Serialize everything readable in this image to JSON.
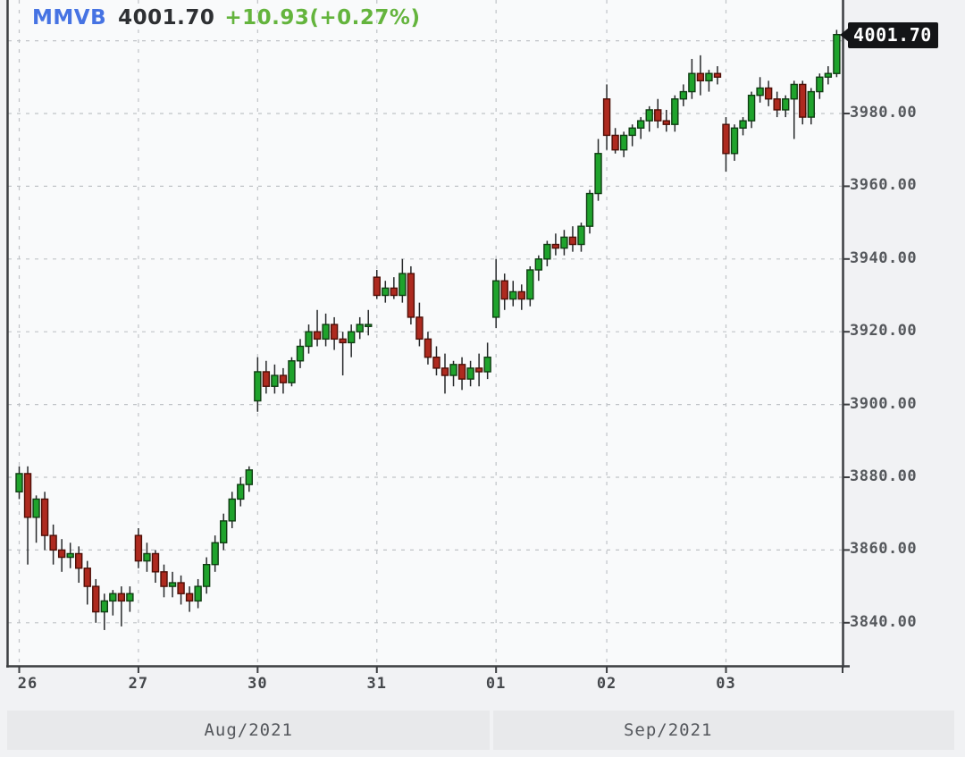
{
  "header": {
    "symbol": "MMVB",
    "last": "4001.70",
    "change": "+10.93(+0.27%)"
  },
  "price_tag": {
    "value": "4001.70"
  },
  "chart_data": {
    "type": "candlestick",
    "title": "MMVB intraday (hourly) candlestick chart",
    "symbol": "MMVB",
    "last_price": 4001.7,
    "change": "+10.93",
    "change_percent": "+0.27%",
    "legend_position": "top-left",
    "grid": true,
    "y_axis": {
      "side": "right",
      "visible_range": [
        3828,
        4012
      ],
      "grid_step": 20,
      "grid_levels": [
        3840,
        3860,
        3880,
        3900,
        3920,
        3940,
        3960,
        3980,
        4000
      ],
      "label_levels": [
        3980,
        3960,
        3940,
        3920,
        3900,
        3880,
        3860,
        3840
      ],
      "labels": [
        "3980.00",
        "3960.00",
        "3940.00",
        "3920.00",
        "3900.00",
        "3880.00",
        "3860.00",
        "3840.00"
      ]
    },
    "x_axis": {
      "day_ticks": [
        {
          "index": 0,
          "label": "26"
        },
        {
          "index": 14,
          "label": "27"
        },
        {
          "index": 28,
          "label": "30"
        },
        {
          "index": 42,
          "label": "31"
        },
        {
          "index": 56,
          "label": "01"
        },
        {
          "index": 69,
          "label": "02"
        },
        {
          "index": 83,
          "label": "03"
        }
      ],
      "months": [
        {
          "label": "Aug/2021",
          "start_index": 0
        },
        {
          "label": "Sep/2021",
          "start_index": 56
        }
      ]
    },
    "candles": [
      [
        3876,
        3883,
        3874,
        3881
      ],
      [
        3881,
        3883,
        3856,
        3869
      ],
      [
        3869,
        3875,
        3862,
        3874
      ],
      [
        3874,
        3876,
        3860,
        3864
      ],
      [
        3864,
        3867,
        3856,
        3860
      ],
      [
        3860,
        3863,
        3854,
        3858
      ],
      [
        3858,
        3862,
        3855,
        3859
      ],
      [
        3859,
        3861,
        3851,
        3855
      ],
      [
        3855,
        3857,
        3845,
        3850
      ],
      [
        3850,
        3852,
        3840,
        3843
      ],
      [
        3843,
        3848,
        3838,
        3846
      ],
      [
        3846,
        3849,
        3842,
        3848
      ],
      [
        3848,
        3850,
        3839,
        3846
      ],
      [
        3846,
        3850,
        3843,
        3848
      ],
      [
        3864,
        3866,
        3855,
        3857
      ],
      [
        3857,
        3862,
        3854,
        3859
      ],
      [
        3859,
        3860,
        3851,
        3854
      ],
      [
        3854,
        3856,
        3847,
        3850
      ],
      [
        3850,
        3854,
        3847,
        3851
      ],
      [
        3851,
        3853,
        3845,
        3848
      ],
      [
        3848,
        3850,
        3843,
        3846
      ],
      [
        3846,
        3852,
        3844,
        3850
      ],
      [
        3850,
        3858,
        3848,
        3856
      ],
      [
        3856,
        3864,
        3854,
        3862
      ],
      [
        3862,
        3870,
        3860,
        3868
      ],
      [
        3868,
        3876,
        3866,
        3874
      ],
      [
        3874,
        3880,
        3872,
        3878
      ],
      [
        3878,
        3883,
        3876,
        3882
      ],
      [
        3901,
        3913,
        3898,
        3909
      ],
      [
        3909,
        3912,
        3903,
        3905
      ],
      [
        3905,
        3911,
        3903,
        3908
      ],
      [
        3908,
        3910,
        3903,
        3906
      ],
      [
        3906,
        3913,
        3905,
        3912
      ],
      [
        3912,
        3918,
        3910,
        3916
      ],
      [
        3916,
        3922,
        3914,
        3920
      ],
      [
        3920,
        3926,
        3916,
        3918
      ],
      [
        3918,
        3925,
        3916,
        3922
      ],
      [
        3922,
        3924,
        3915,
        3918
      ],
      [
        3918,
        3920,
        3908,
        3917
      ],
      [
        3917,
        3922,
        3913,
        3920
      ],
      [
        3920,
        3924,
        3918,
        3922
      ],
      [
        3922,
        3926,
        3919,
        3922
      ],
      [
        3935,
        3937,
        3929,
        3930
      ],
      [
        3930,
        3934,
        3928,
        3932
      ],
      [
        3932,
        3935,
        3929,
        3930
      ],
      [
        3930,
        3940,
        3928,
        3936
      ],
      [
        3936,
        3938,
        3922,
        3924
      ],
      [
        3924,
        3928,
        3916,
        3918
      ],
      [
        3918,
        3920,
        3911,
        3913
      ],
      [
        3913,
        3916,
        3908,
        3910
      ],
      [
        3910,
        3914,
        3903,
        3908
      ],
      [
        3908,
        3912,
        3905,
        3911
      ],
      [
        3911,
        3913,
        3904,
        3907
      ],
      [
        3907,
        3912,
        3905,
        3910
      ],
      [
        3910,
        3914,
        3905,
        3909
      ],
      [
        3909,
        3917,
        3907,
        3913
      ],
      [
        3924,
        3940,
        3921,
        3934
      ],
      [
        3934,
        3936,
        3926,
        3929
      ],
      [
        3929,
        3934,
        3927,
        3931
      ],
      [
        3931,
        3933,
        3926,
        3929
      ],
      [
        3929,
        3938,
        3927,
        3937
      ],
      [
        3937,
        3941,
        3934,
        3940
      ],
      [
        3940,
        3945,
        3938,
        3944
      ],
      [
        3944,
        3947,
        3941,
        3943
      ],
      [
        3943,
        3948,
        3941,
        3946
      ],
      [
        3946,
        3949,
        3942,
        3944
      ],
      [
        3944,
        3950,
        3942,
        3949
      ],
      [
        3949,
        3959,
        3947,
        3958
      ],
      [
        3958,
        3973,
        3956,
        3969
      ],
      [
        3984,
        3988,
        3970,
        3974
      ],
      [
        3974,
        3976,
        3969,
        3970
      ],
      [
        3970,
        3975,
        3968,
        3974
      ],
      [
        3974,
        3977,
        3971,
        3976
      ],
      [
        3976,
        3979,
        3973,
        3978
      ],
      [
        3978,
        3982,
        3975,
        3981
      ],
      [
        3981,
        3984,
        3976,
        3978
      ],
      [
        3978,
        3981,
        3975,
        3977
      ],
      [
        3977,
        3985,
        3975,
        3984
      ],
      [
        3984,
        3988,
        3982,
        3986
      ],
      [
        3986,
        3995,
        3984,
        3991
      ],
      [
        3991,
        3996,
        3985,
        3989
      ],
      [
        3989,
        3992,
        3986,
        3991
      ],
      [
        3991,
        3993,
        3988,
        3990
      ],
      [
        3977,
        3979,
        3964,
        3969
      ],
      [
        3969,
        3977,
        3967,
        3976
      ],
      [
        3976,
        3979,
        3974,
        3978
      ],
      [
        3978,
        3986,
        3976,
        3985
      ],
      [
        3985,
        3990,
        3983,
        3987
      ],
      [
        3987,
        3989,
        3982,
        3984
      ],
      [
        3984,
        3986,
        3979,
        3981
      ],
      [
        3981,
        3985,
        3979,
        3984
      ],
      [
        3984,
        3989,
        3973,
        3988
      ],
      [
        3988,
        3989,
        3977,
        3979
      ],
      [
        3979,
        3987,
        3977,
        3986
      ],
      [
        3986,
        3991,
        3984,
        3990
      ],
      [
        3990,
        3993,
        3988,
        3991
      ],
      [
        3991,
        4003,
        3990,
        4001.7
      ]
    ],
    "colors": {
      "up": "#1fa32c",
      "up_border": "#103d13",
      "down": "#ae2a1f",
      "down_border": "#4e0f07",
      "wick": "#26282a",
      "grid": "#c0c3c7",
      "axis": "#3c3e41",
      "plot_background": "#f9fafb",
      "page_background": "#f1f2f4",
      "band_background": "#e8e9eb",
      "symbol_blue": "#4673e3",
      "change_green": "#64b43d",
      "tag_background": "#141517",
      "tag_text": "#ffffff"
    }
  }
}
